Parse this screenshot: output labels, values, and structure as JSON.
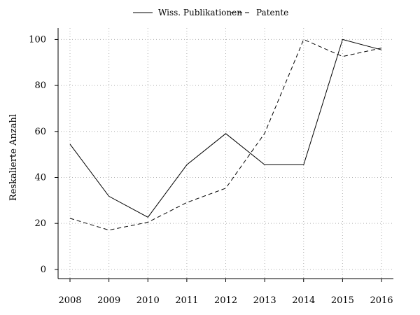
{
  "chart_data": {
    "type": "line",
    "x": [
      2008,
      2009,
      2010,
      2011,
      2012,
      2013,
      2014,
      2015,
      2016
    ],
    "series": [
      {
        "name": "Wiss. Publikationen",
        "style": "solid",
        "values": [
          54.5,
          31.8,
          22.7,
          45.5,
          59.1,
          45.5,
          45.5,
          100,
          95.5
        ]
      },
      {
        "name": "Patente",
        "style": "dashed",
        "values": [
          22.2,
          17.1,
          20.5,
          29.1,
          35.3,
          59.2,
          100,
          92.6,
          96.3
        ]
      }
    ],
    "ylabel": "Reskalierte Anzahl",
    "xlabel": "",
    "ylim": [
      -4,
      105
    ],
    "yticks": [
      0,
      20,
      40,
      60,
      80,
      100
    ],
    "grid": true,
    "legend_position": "top-center"
  }
}
